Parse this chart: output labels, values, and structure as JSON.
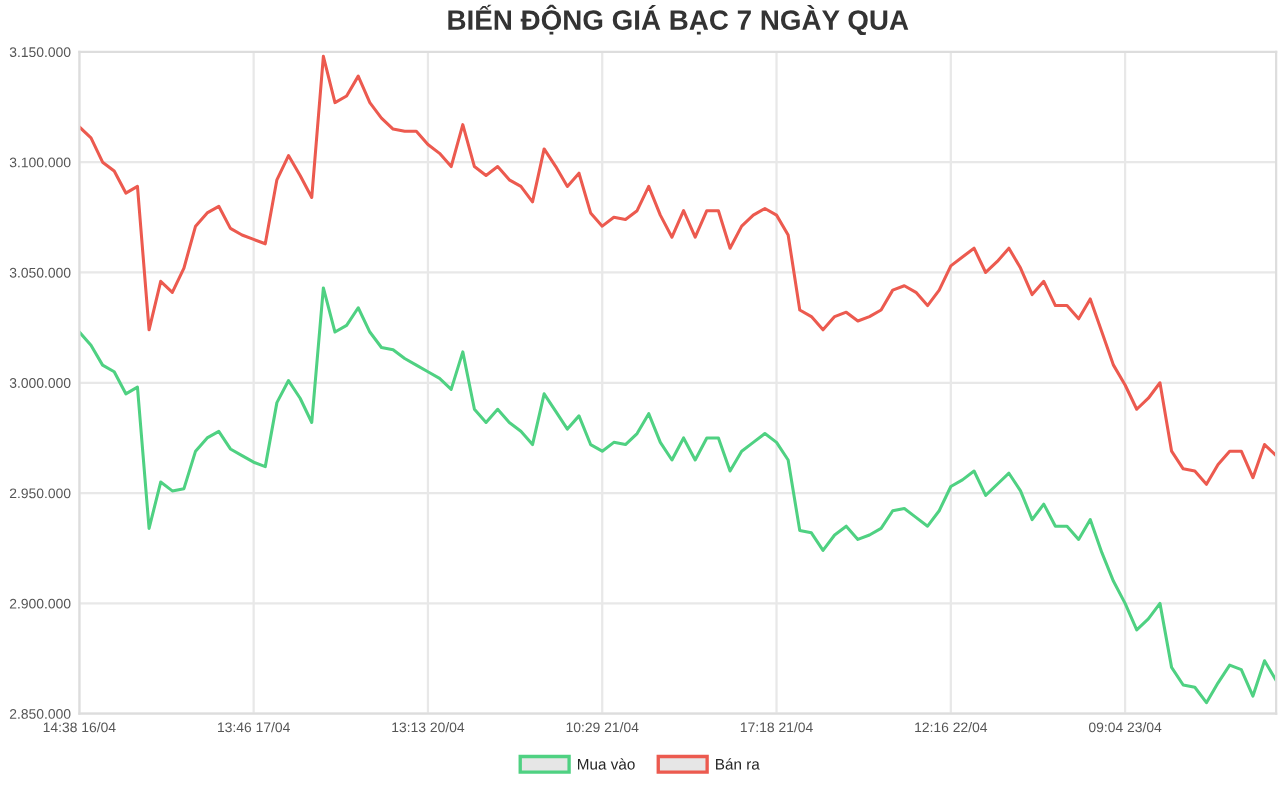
{
  "chart_data": {
    "type": "line",
    "title": "BIẾN ĐỘNG GIÁ BẠC 7 NGÀY QUA",
    "categories": [
      "14:38 16/04",
      null,
      null,
      null,
      null,
      null,
      null,
      null,
      null,
      null,
      null,
      null,
      null,
      null,
      null,
      "13:46 17/04",
      null,
      null,
      null,
      null,
      null,
      null,
      null,
      null,
      null,
      null,
      null,
      null,
      null,
      null,
      "13:13 20/04",
      null,
      null,
      null,
      null,
      null,
      null,
      null,
      null,
      null,
      null,
      null,
      null,
      null,
      null,
      "10:29 21/04",
      null,
      null,
      null,
      null,
      null,
      null,
      null,
      null,
      null,
      null,
      null,
      null,
      null,
      null,
      "17:18 21/04",
      null,
      null,
      null,
      null,
      null,
      null,
      null,
      null,
      null,
      null,
      null,
      null,
      null,
      null,
      "12:16 22/04",
      null,
      null,
      null,
      null,
      null,
      null,
      null,
      null,
      null,
      null,
      null,
      null,
      null,
      null,
      "09:04 23/04",
      null,
      null,
      null,
      null,
      null,
      null,
      null,
      null,
      null,
      null,
      null,
      null,
      null
    ],
    "ylim": [
      2850000,
      3150000
    ],
    "yticks": [
      {
        "value": 2850000,
        "label": "2.850.000"
      },
      {
        "value": 2900000,
        "label": "2.900.000"
      },
      {
        "value": 2950000,
        "label": "2.950.000"
      },
      {
        "value": 3000000,
        "label": "3.000.000"
      },
      {
        "value": 3050000,
        "label": "3.050.000"
      },
      {
        "value": 3100000,
        "label": "3.100.000"
      },
      {
        "value": 3150000,
        "label": "3.150.000"
      }
    ],
    "grid": true,
    "legend": "bottom",
    "marker": "none",
    "line_style": "solid",
    "series": [
      {
        "name": "Mua vào",
        "color": "#4fd182",
        "values": [
          3023000,
          3017000,
          3008000,
          3005000,
          2995000,
          2998000,
          2934000,
          2955000,
          2951000,
          2952000,
          2969000,
          2975000,
          2978000,
          2970000,
          2967000,
          2964000,
          2962000,
          2991000,
          3001000,
          2993000,
          2982000,
          3043000,
          3023000,
          3026000,
          3034000,
          3023000,
          3016000,
          3015000,
          3011000,
          3008000,
          3005000,
          3002000,
          2997000,
          3014000,
          2988000,
          2982000,
          2988000,
          2982000,
          2978000,
          2972000,
          2995000,
          2987000,
          2979000,
          2985000,
          2972000,
          2969000,
          2973000,
          2972000,
          2977000,
          2986000,
          2973000,
          2965000,
          2975000,
          2965000,
          2975000,
          2975000,
          2960000,
          2969000,
          2973000,
          2977000,
          2973000,
          2965000,
          2933000,
          2932000,
          2924000,
          2931000,
          2935000,
          2929000,
          2931000,
          2934000,
          2942000,
          2943000,
          2939000,
          2935000,
          2942000,
          2953000,
          2956000,
          2960000,
          2949000,
          2954000,
          2959000,
          2951000,
          2938000,
          2945000,
          2935000,
          2935000,
          2929000,
          2938000,
          2923000,
          2910000,
          2900000,
          2888000,
          2893000,
          2900000,
          2871000,
          2863000,
          2862000,
          2855000,
          2864000,
          2872000,
          2870000,
          2858000,
          2874000,
          2865000
        ]
      },
      {
        "name": "Bán ra",
        "color": "#ec5a4f",
        "values": [
          3116000,
          3111000,
          3100000,
          3096000,
          3086000,
          3089000,
          3024000,
          3046000,
          3041000,
          3052000,
          3071000,
          3077000,
          3080000,
          3070000,
          3067000,
          3065000,
          3063000,
          3092000,
          3103000,
          3094000,
          3084000,
          3148000,
          3127000,
          3130000,
          3139000,
          3127000,
          3120000,
          3115000,
          3114000,
          3114000,
          3108000,
          3104000,
          3098000,
          3117000,
          3098000,
          3094000,
          3098000,
          3092000,
          3089000,
          3082000,
          3106000,
          3098000,
          3089000,
          3095000,
          3077000,
          3071000,
          3075000,
          3074000,
          3078000,
          3089000,
          3076000,
          3066000,
          3078000,
          3066000,
          3078000,
          3078000,
          3061000,
          3071000,
          3076000,
          3079000,
          3076000,
          3067000,
          3033000,
          3030000,
          3024000,
          3030000,
          3032000,
          3028000,
          3030000,
          3033000,
          3042000,
          3044000,
          3041000,
          3035000,
          3042000,
          3053000,
          3057000,
          3061000,
          3050000,
          3055000,
          3061000,
          3052000,
          3040000,
          3046000,
          3035000,
          3035000,
          3029000,
          3038000,
          3023000,
          3008000,
          2999000,
          2988000,
          2993000,
          3000000,
          2969000,
          2961000,
          2960000,
          2954000,
          2963000,
          2969000,
          2969000,
          2957000,
          2972000,
          2967000
        ]
      }
    ]
  }
}
